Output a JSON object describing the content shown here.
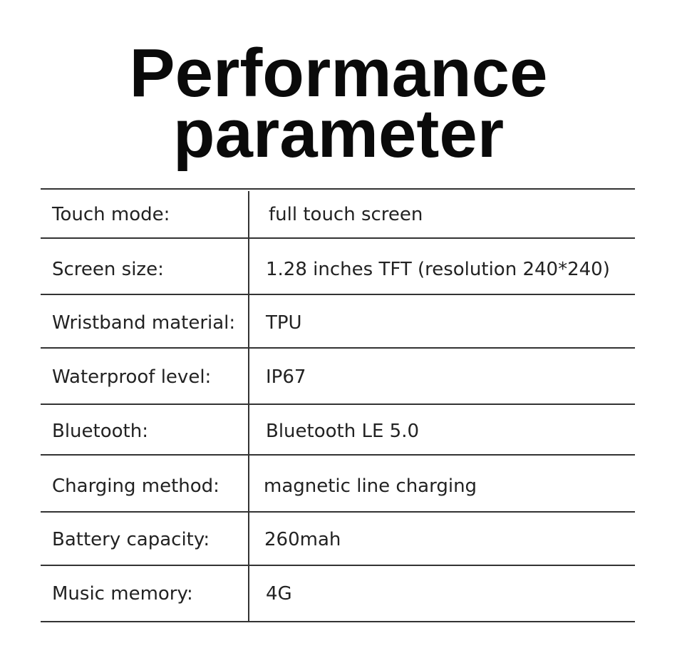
{
  "title": {
    "line1": "Performance",
    "line2": "parameter"
  },
  "rows": [
    {
      "label": "Touch mode:",
      "value": "full touch screen"
    },
    {
      "label": "Screen size:",
      "value": "1.28 inches TFT (resolution 240*240)"
    },
    {
      "label": "Wristband material:",
      "value": "TPU"
    },
    {
      "label": "Waterproof level:",
      "value": "IP67"
    },
    {
      "label": "Bluetooth:",
      "value": "Bluetooth LE 5.0"
    },
    {
      "label": "Charging method:",
      "value": "magnetic line charging"
    },
    {
      "label": "Battery capacity:",
      "value": "260mah"
    },
    {
      "label": "Music memory:",
      "value": "4G"
    }
  ]
}
